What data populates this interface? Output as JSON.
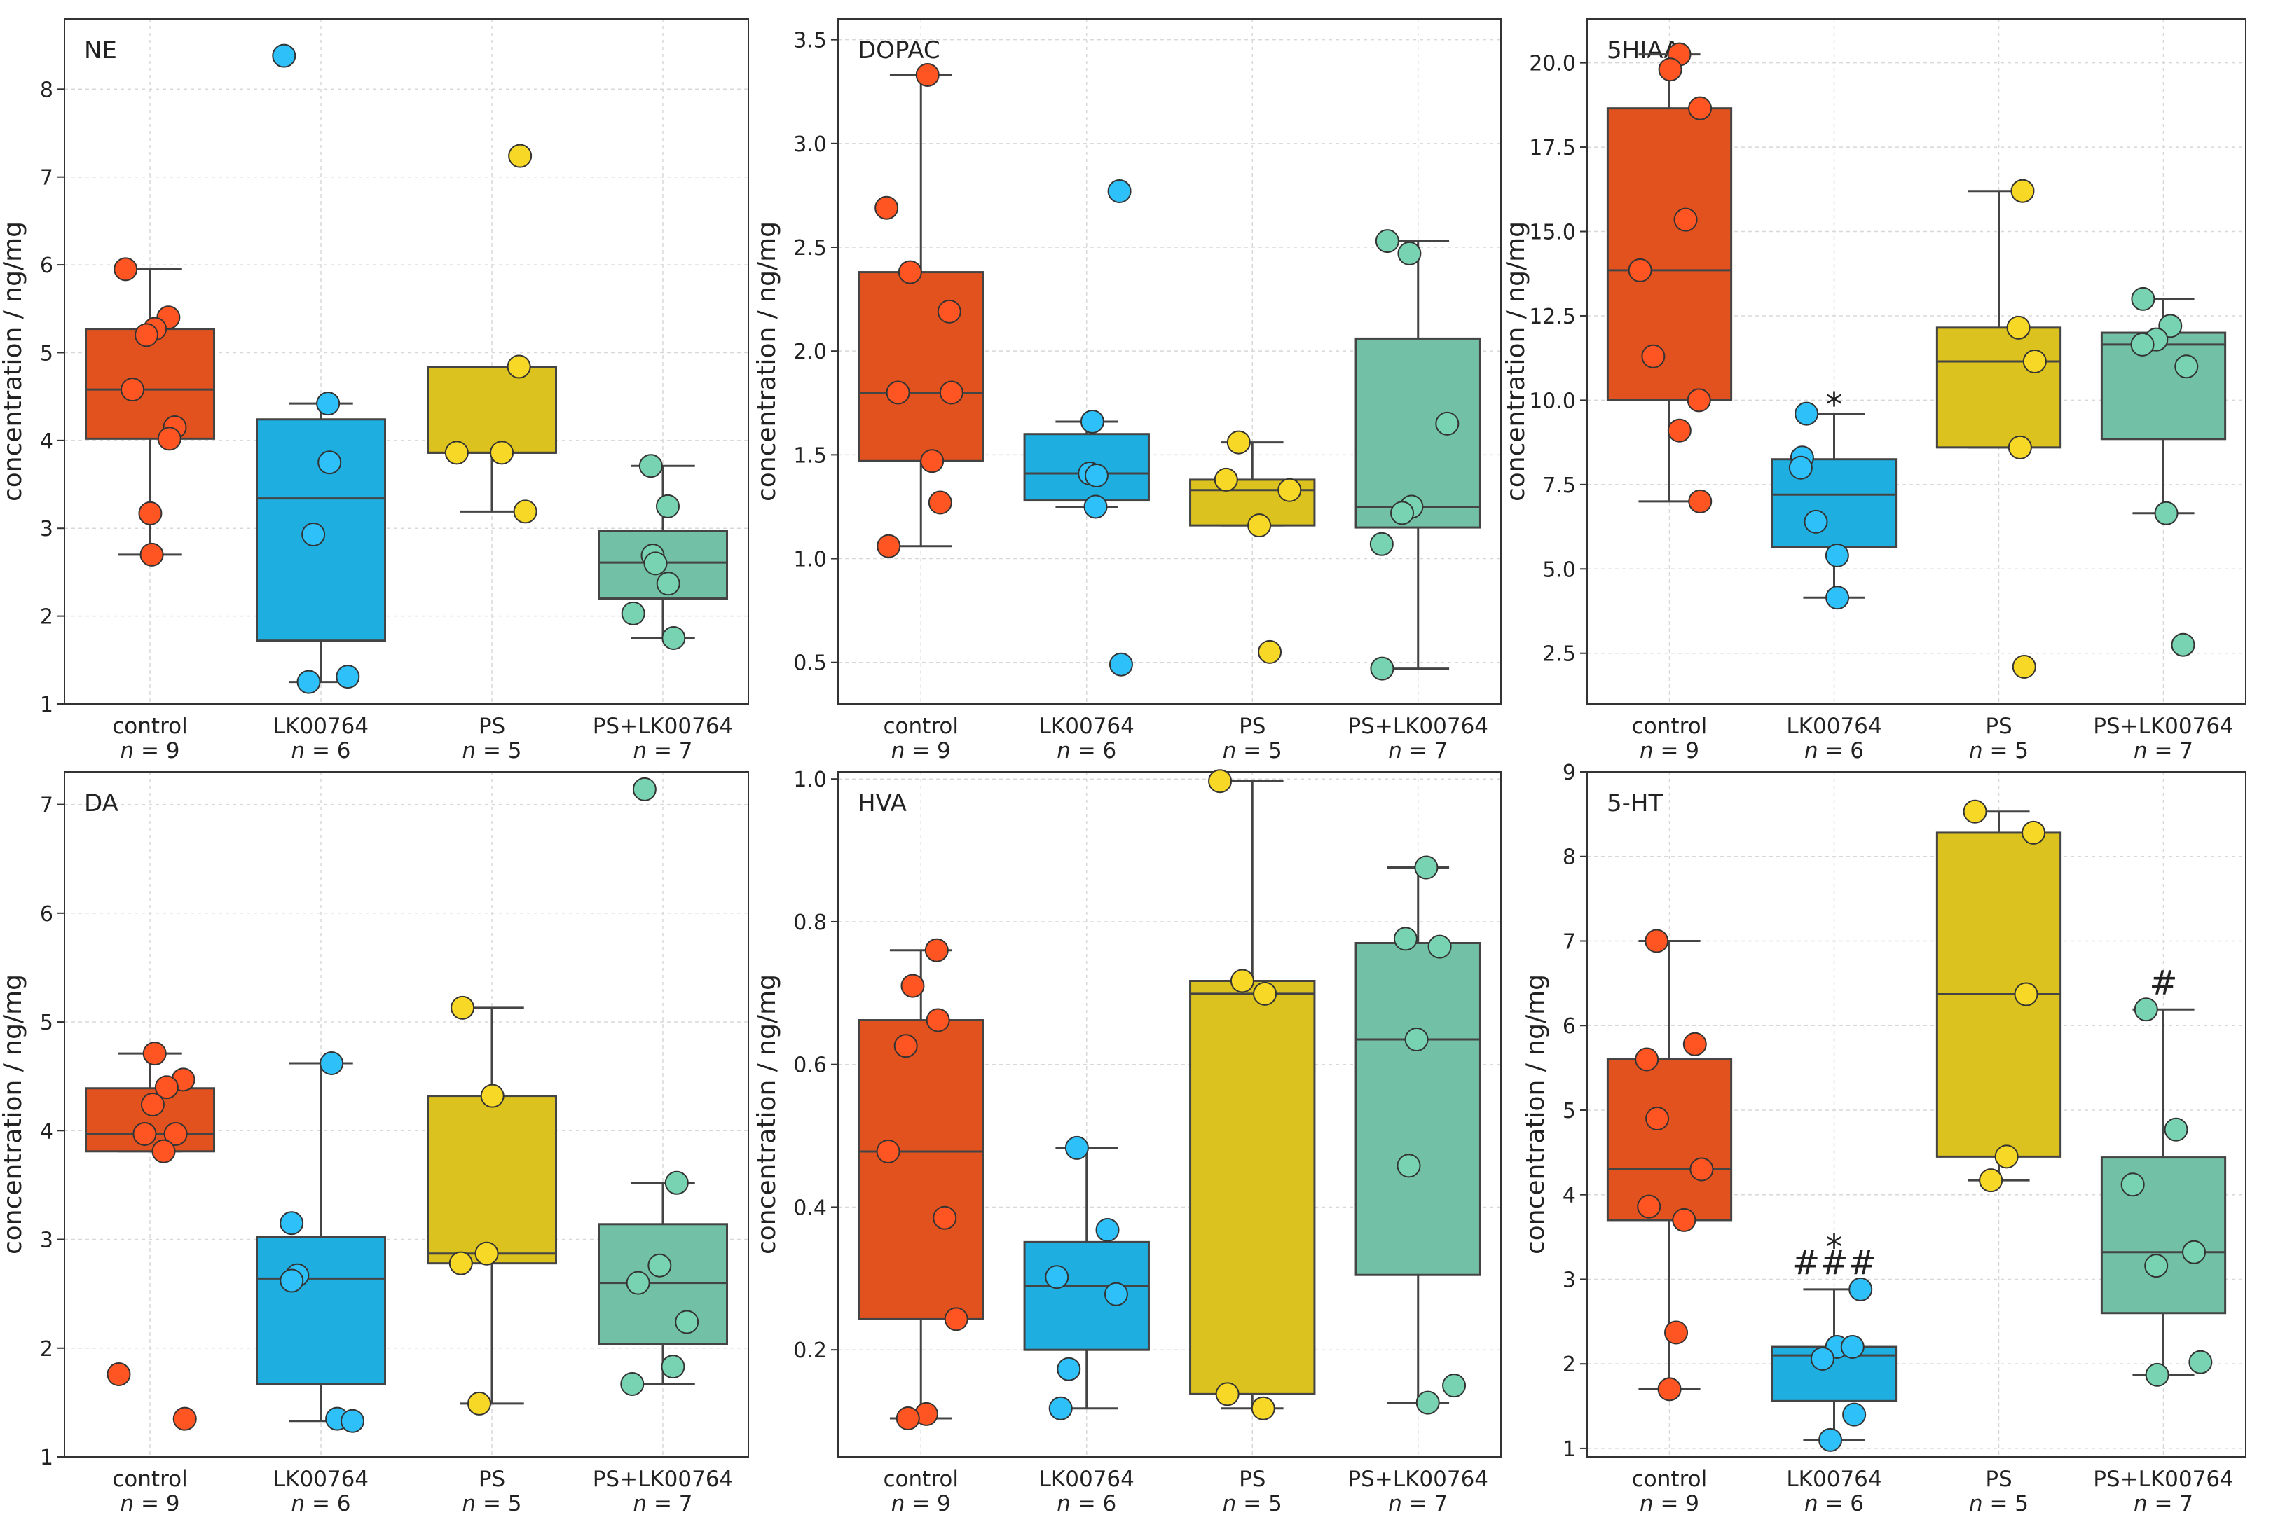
{
  "colors": {
    "control": "#E2521E",
    "LK00764": "#1FAEE0",
    "PS": "#DCC21E",
    "PS+LK00764": "#72C1A6",
    "point_control": "#FF5522",
    "point_LK00764": "#2EC0F8",
    "point_PS": "#F8D827",
    "point_PS+LK00764": "#78D3B2",
    "line": "#444444"
  },
  "chart_data": [
    {
      "type": "box",
      "title": "NE",
      "ylabel": "concentration / ng/mg",
      "ylim": [
        1,
        8.8
      ],
      "yticks": [
        1,
        2,
        3,
        4,
        5,
        6,
        7,
        8
      ],
      "tick_decimals": 0,
      "groups": [
        {
          "name": "control",
          "n_label": "n = 9",
          "q1": 4.02,
          "median": 4.58,
          "q3": 5.27,
          "whisker_low": 2.7,
          "whisker_high": 5.95,
          "points": [
            5.95,
            5.4,
            5.27,
            5.2,
            4.58,
            4.15,
            4.02,
            3.17,
            2.7
          ],
          "annotations": []
        },
        {
          "name": "LK00764",
          "n_label": "n = 6",
          "q1": 1.72,
          "median": 3.34,
          "q3": 4.24,
          "whisker_low": 1.25,
          "whisker_high": 4.42,
          "points": [
            8.38,
            4.42,
            3.75,
            2.93,
            1.31,
            1.25
          ],
          "annotations": []
        },
        {
          "name": "PS",
          "n_label": "n = 5",
          "q1": 3.86,
          "median": 3.86,
          "q3": 4.84,
          "whisker_low": 3.19,
          "whisker_high": 4.84,
          "points": [
            7.24,
            4.84,
            3.86,
            3.86,
            3.19
          ],
          "annotations": []
        },
        {
          "name": "PS+LK00764",
          "n_label": "n = 7",
          "q1": 2.2,
          "median": 2.61,
          "q3": 2.97,
          "whisker_low": 1.75,
          "whisker_high": 3.71,
          "points": [
            3.71,
            3.25,
            2.69,
            2.6,
            2.37,
            2.03,
            1.75
          ],
          "annotations": []
        }
      ]
    },
    {
      "type": "box",
      "title": "DOPAC",
      "ylabel": "concentration / ng/mg",
      "ylim": [
        0.3,
        3.6
      ],
      "yticks": [
        0.5,
        1.0,
        1.5,
        2.0,
        2.5,
        3.0,
        3.5
      ],
      "tick_decimals": 1,
      "groups": [
        {
          "name": "control",
          "n_label": "n = 9",
          "q1": 1.47,
          "median": 1.8,
          "q3": 2.38,
          "whisker_low": 1.06,
          "whisker_high": 3.33,
          "points": [
            3.33,
            2.69,
            2.38,
            2.19,
            1.8,
            1.8,
            1.47,
            1.27,
            1.06
          ],
          "annotations": []
        },
        {
          "name": "LK00764",
          "n_label": "n = 6",
          "q1": 1.28,
          "median": 1.41,
          "q3": 1.6,
          "whisker_low": 1.25,
          "whisker_high": 1.66,
          "points": [
            2.77,
            1.66,
            1.41,
            1.4,
            1.25,
            0.49
          ],
          "annotations": []
        },
        {
          "name": "PS",
          "n_label": "n = 5",
          "q1": 1.16,
          "median": 1.33,
          "q3": 1.38,
          "whisker_low": 1.16,
          "whisker_high": 1.56,
          "points": [
            1.56,
            1.38,
            1.33,
            1.16,
            0.55
          ],
          "annotations": []
        },
        {
          "name": "PS+LK00764",
          "n_label": "n = 7",
          "q1": 1.15,
          "median": 1.25,
          "q3": 2.06,
          "whisker_low": 0.47,
          "whisker_high": 2.53,
          "points": [
            2.53,
            2.47,
            1.65,
            1.25,
            1.22,
            1.07,
            0.47
          ],
          "annotations": []
        }
      ]
    },
    {
      "type": "box",
      "title": "5HIAA",
      "ylabel": "concentration / ng/mg",
      "ylim": [
        1.0,
        21.3
      ],
      "yticks": [
        2.5,
        5.0,
        7.5,
        10.0,
        12.5,
        15.0,
        17.5,
        20.0
      ],
      "tick_decimals": 1,
      "groups": [
        {
          "name": "control",
          "n_label": "n = 9",
          "q1": 10.0,
          "median": 13.85,
          "q3": 18.65,
          "whisker_low": 7.0,
          "whisker_high": 20.25,
          "points": [
            20.25,
            19.8,
            18.65,
            15.35,
            13.85,
            11.3,
            10.0,
            9.1,
            7.0
          ],
          "annotations": []
        },
        {
          "name": "LK00764",
          "n_label": "n = 6",
          "q1": 5.65,
          "median": 7.2,
          "q3": 8.25,
          "whisker_low": 4.15,
          "whisker_high": 9.6,
          "points": [
            9.6,
            8.3,
            8.0,
            6.4,
            5.4,
            4.15
          ],
          "annotations": [
            "*"
          ]
        },
        {
          "name": "PS",
          "n_label": "n = 5",
          "q1": 8.6,
          "median": 11.15,
          "q3": 12.15,
          "whisker_low": 8.6,
          "whisker_high": 16.2,
          "points": [
            16.2,
            12.15,
            11.15,
            8.6,
            2.1
          ],
          "annotations": []
        },
        {
          "name": "PS+LK00764",
          "n_label": "n = 7",
          "q1": 8.85,
          "median": 11.65,
          "q3": 12.0,
          "whisker_low": 6.65,
          "whisker_high": 13.0,
          "points": [
            13.0,
            12.2,
            11.8,
            11.65,
            11.0,
            6.65,
            2.75
          ],
          "annotations": []
        }
      ]
    },
    {
      "type": "box",
      "title": "DA",
      "ylabel": "concentration / ng/mg",
      "ylim": [
        1,
        7.3
      ],
      "yticks": [
        1,
        2,
        3,
        4,
        5,
        6,
        7
      ],
      "tick_decimals": 0,
      "groups": [
        {
          "name": "control",
          "n_label": "n = 9",
          "q1": 3.81,
          "median": 3.97,
          "q3": 4.39,
          "whisker_low": 3.81,
          "whisker_high": 4.71,
          "points": [
            4.71,
            4.47,
            4.4,
            4.24,
            3.97,
            3.97,
            3.81,
            1.76,
            1.35
          ],
          "annotations": []
        },
        {
          "name": "LK00764",
          "n_label": "n = 6",
          "q1": 1.67,
          "median": 2.64,
          "q3": 3.02,
          "whisker_low": 1.33,
          "whisker_high": 4.62,
          "points": [
            4.62,
            3.15,
            2.67,
            2.62,
            1.35,
            1.33
          ],
          "annotations": []
        },
        {
          "name": "PS",
          "n_label": "n = 5",
          "q1": 2.78,
          "median": 2.87,
          "q3": 4.32,
          "whisker_low": 1.49,
          "whisker_high": 5.13,
          "points": [
            5.13,
            4.32,
            2.87,
            2.78,
            1.49
          ],
          "annotations": []
        },
        {
          "name": "PS+LK00764",
          "n_label": "n = 7",
          "q1": 2.04,
          "median": 2.6,
          "q3": 3.14,
          "whisker_low": 1.67,
          "whisker_high": 3.52,
          "points": [
            7.14,
            3.52,
            2.76,
            2.6,
            2.24,
            1.83,
            1.67
          ],
          "annotations": []
        }
      ]
    },
    {
      "type": "box",
      "title": "HVA",
      "ylabel": "concentration / ng/mg",
      "ylim": [
        0.05,
        1.01
      ],
      "yticks": [
        0.2,
        0.4,
        0.6,
        0.8,
        1.0
      ],
      "tick_decimals": 1,
      "groups": [
        {
          "name": "control",
          "n_label": "n = 9",
          "q1": 0.243,
          "median": 0.478,
          "q3": 0.662,
          "whisker_low": 0.104,
          "whisker_high": 0.76,
          "points": [
            0.76,
            0.71,
            0.662,
            0.626,
            0.478,
            0.385,
            0.243,
            0.11,
            0.104
          ],
          "annotations": []
        },
        {
          "name": "LK00764",
          "n_label": "n = 6",
          "q1": 0.2,
          "median": 0.29,
          "q3": 0.351,
          "whisker_low": 0.118,
          "whisker_high": 0.483,
          "points": [
            0.483,
            0.368,
            0.302,
            0.278,
            0.173,
            0.118
          ],
          "annotations": []
        },
        {
          "name": "PS",
          "n_label": "n = 5",
          "q1": 0.138,
          "median": 0.699,
          "q3": 0.717,
          "whisker_low": 0.118,
          "whisker_high": 0.997,
          "points": [
            0.997,
            0.717,
            0.699,
            0.138,
            0.118
          ],
          "annotations": []
        },
        {
          "name": "PS+LK00764",
          "n_label": "n = 7",
          "q1": 0.305,
          "median": 0.635,
          "q3": 0.77,
          "whisker_low": 0.126,
          "whisker_high": 0.876,
          "points": [
            0.876,
            0.776,
            0.765,
            0.635,
            0.458,
            0.15,
            0.126
          ],
          "annotations": []
        }
      ]
    },
    {
      "type": "box",
      "title": "5-HT",
      "ylabel": "concentration / ng/mg",
      "ylim": [
        0.9,
        9.0
      ],
      "yticks": [
        1,
        2,
        3,
        4,
        5,
        6,
        7,
        8,
        9
      ],
      "tick_decimals": 0,
      "groups": [
        {
          "name": "control",
          "n_label": "n = 9",
          "q1": 3.7,
          "median": 4.3,
          "q3": 5.6,
          "whisker_low": 1.7,
          "whisker_high": 7.0,
          "points": [
            7.0,
            5.78,
            5.6,
            4.9,
            4.3,
            3.86,
            3.7,
            2.37,
            1.7
          ],
          "annotations": []
        },
        {
          "name": "LK00764",
          "n_label": "n = 6",
          "q1": 1.56,
          "median": 2.1,
          "q3": 2.2,
          "whisker_low": 1.1,
          "whisker_high": 2.88,
          "points": [
            2.88,
            2.2,
            2.2,
            2.06,
            1.4,
            1.1
          ],
          "annotations": [
            "###",
            "*"
          ]
        },
        {
          "name": "PS",
          "n_label": "n = 5",
          "q1": 4.45,
          "median": 6.37,
          "q3": 8.28,
          "whisker_low": 4.17,
          "whisker_high": 8.53,
          "points": [
            8.53,
            8.28,
            6.37,
            4.45,
            4.17
          ],
          "annotations": []
        },
        {
          "name": "PS+LK00764",
          "n_label": "n = 7",
          "q1": 2.6,
          "median": 3.32,
          "q3": 4.44,
          "whisker_low": 1.87,
          "whisker_high": 6.19,
          "points": [
            6.19,
            4.77,
            4.12,
            3.32,
            3.16,
            2.02,
            1.87
          ],
          "annotations": [
            "#"
          ]
        }
      ]
    }
  ]
}
